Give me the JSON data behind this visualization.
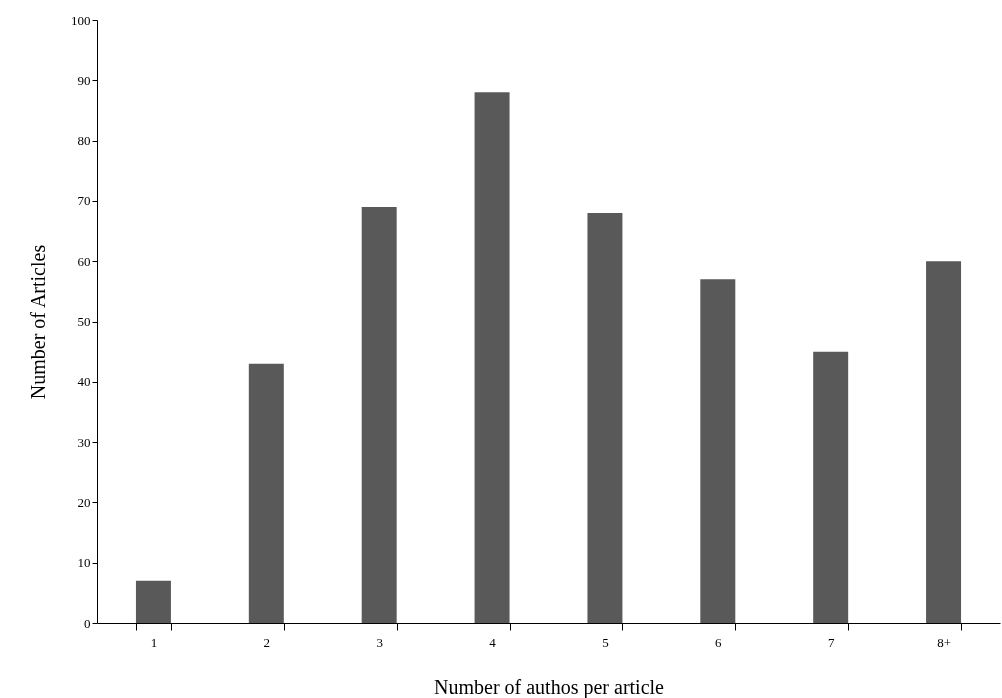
{
  "chart_data": {
    "type": "bar",
    "xlabel": "Number of authos per article",
    "ylabel": "Number of Articles",
    "categories": [
      "1",
      "2",
      "3",
      "4",
      "5",
      "6",
      "7",
      "8+"
    ],
    "values": [
      7,
      43,
      69,
      88,
      68,
      57,
      45,
      60
    ],
    "color": "#595959",
    "ylim": [
      0,
      100
    ],
    "yticks": [
      0,
      10,
      20,
      30,
      40,
      50,
      60,
      70,
      80,
      90,
      100
    ],
    "grid": false,
    "legend": false
  }
}
